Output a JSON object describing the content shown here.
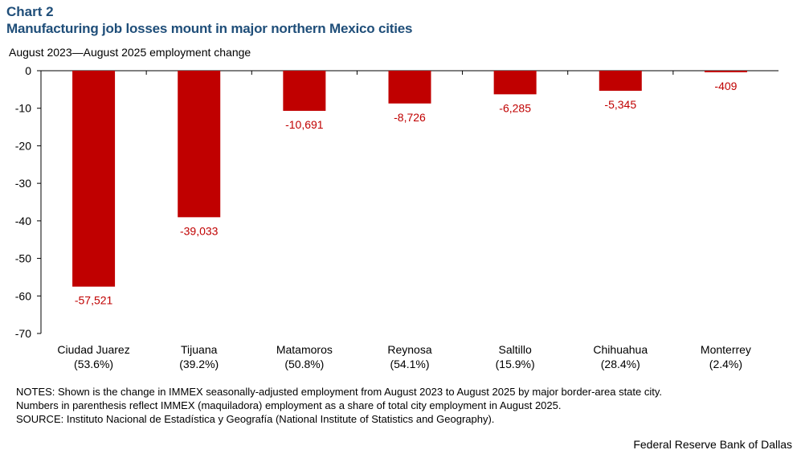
{
  "header": {
    "chart_number": "Chart 2",
    "title": "Manufacturing job losses mount in major northern Mexico cities"
  },
  "chart_data": {
    "type": "bar",
    "title": "Manufacturing job losses mount in major northern Mexico cities",
    "ylabel": "August 2023—August 2025 employment  change",
    "xlabel": "",
    "units": "thousands",
    "ylim": [
      -70,
      0
    ],
    "yticks": [
      0,
      -10,
      -20,
      -30,
      -40,
      -50,
      -60,
      -70
    ],
    "categories": [
      "Ciudad Juarez",
      "Tijuana",
      "Matamoros",
      "Reynosa",
      "Saltillo",
      "Chihuahua",
      "Monterrey"
    ],
    "category_shares": [
      "(53.6%)",
      "(39.2%)",
      "(50.8%)",
      "(54.1%)",
      "(15.9%)",
      "(28.4%)",
      "(2.4%)"
    ],
    "values": [
      -57.521,
      -39.033,
      -10.691,
      -8.726,
      -6.285,
      -5.345,
      -0.409
    ],
    "data_labels": [
      "-57,521",
      "-39,033",
      "-10,691",
      "-8,726",
      "-6,285",
      "-5,345",
      "-409"
    ],
    "bar_color": "#c00000",
    "label_color": "#c00000",
    "grid": false
  },
  "notes": {
    "line1": "NOTES: Shown is the change in IMMEX  seasonally-adjusted employment from August 2023 to August 2025 by major border-area state city.",
    "line2": "Numbers in parenthesis reflect IMMEX  (maquiladora) employment as a share of total city employment in August 2025.",
    "source": "SOURCE: Instituto Nacional de Estadística y Geografía (National Institute of Statistics and Geography)."
  },
  "footer": {
    "credit": "Federal Reserve Bank of Dallas"
  }
}
